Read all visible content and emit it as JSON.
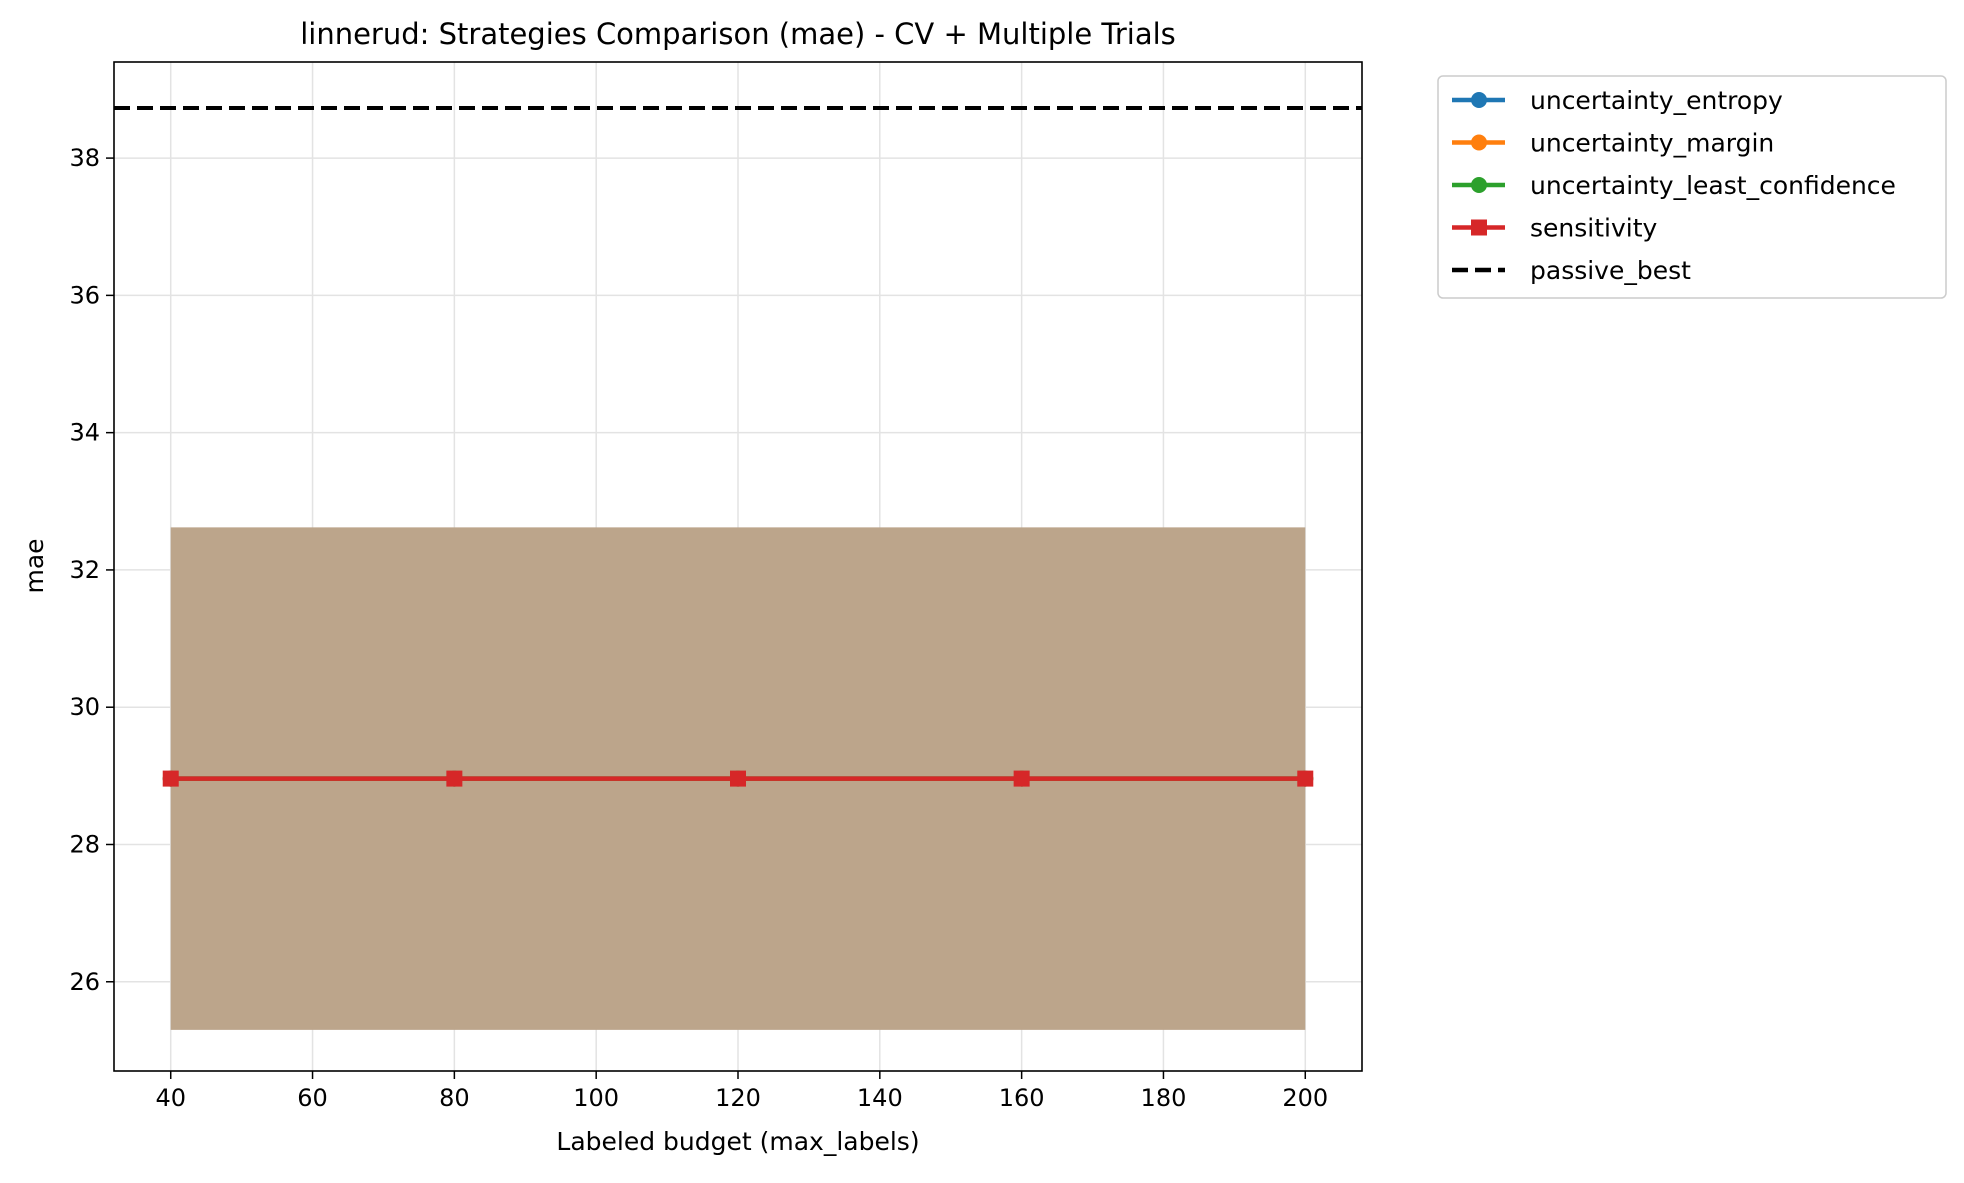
{
  "chart_data": {
    "type": "line",
    "title": "linnerud: Strategies Comparison (mae) - CV + Multiple Trials",
    "xlabel": "Labeled budget (max_labels)",
    "ylabel": "mae",
    "xlim": [
      32,
      208
    ],
    "ylim": [
      24.7,
      39.4
    ],
    "xticks": [
      "40",
      "60",
      "80",
      "100",
      "120",
      "140",
      "160",
      "180",
      "200"
    ],
    "yticks": [
      "26",
      "28",
      "30",
      "32",
      "34",
      "36",
      "38"
    ],
    "grid": true,
    "legend_position": "outside-top-right",
    "x": [
      40,
      80,
      120,
      160,
      200
    ],
    "series": [
      {
        "name": "uncertainty_entropy",
        "color": "#1f77b4",
        "marker": "circle",
        "values": [
          28.96,
          28.96,
          28.96,
          28.96,
          28.96
        ],
        "band_lower": [
          25.3,
          25.3,
          25.3,
          25.3,
          25.3
        ],
        "band_upper": [
          32.62,
          32.62,
          32.62,
          32.62,
          32.62
        ]
      },
      {
        "name": "uncertainty_margin",
        "color": "#ff7f0e",
        "marker": "circle",
        "values": [
          28.96,
          28.96,
          28.96,
          28.96,
          28.96
        ],
        "band_lower": [
          25.3,
          25.3,
          25.3,
          25.3,
          25.3
        ],
        "band_upper": [
          32.62,
          32.62,
          32.62,
          32.62,
          32.62
        ]
      },
      {
        "name": "uncertainty_least_confidence",
        "color": "#2ca02c",
        "marker": "circle",
        "values": [
          28.96,
          28.96,
          28.96,
          28.96,
          28.96
        ],
        "band_lower": [
          25.3,
          25.3,
          25.3,
          25.3,
          25.3
        ],
        "band_upper": [
          32.62,
          32.62,
          32.62,
          32.62,
          32.62
        ]
      },
      {
        "name": "sensitivity",
        "color": "#d62728",
        "marker": "square",
        "values": [
          28.96,
          28.96,
          28.96,
          28.96,
          28.96
        ],
        "band_lower": [
          25.3,
          25.3,
          25.3,
          25.3,
          25.3
        ],
        "band_upper": [
          32.62,
          32.62,
          32.62,
          32.62,
          32.62
        ]
      }
    ],
    "band_fill_color": "#bca58b",
    "reference_line": {
      "name": "passive_best",
      "value": 38.73,
      "color": "#000000",
      "style": "dashed"
    }
  }
}
